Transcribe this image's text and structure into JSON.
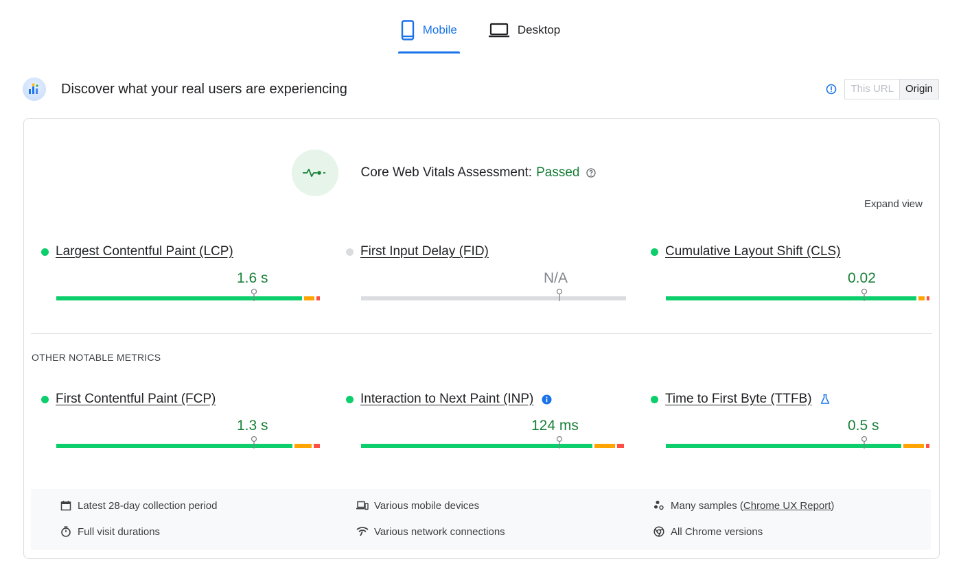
{
  "tabs": [
    {
      "label": "Mobile",
      "icon": "smartphone-icon",
      "active": true
    },
    {
      "label": "Desktop",
      "icon": "laptop-icon",
      "active": false
    }
  ],
  "header": {
    "title": "Discover what your real users are experiencing",
    "toggle": {
      "this_url": "This URL",
      "origin": "Origin",
      "selected": "Origin"
    }
  },
  "assessment": {
    "label": "Core Web Vitals Assessment:",
    "status": "Passed",
    "expand_view": "Expand view"
  },
  "core_metrics": [
    {
      "label": "Largest Contentful Paint (LCP)",
      "value": "1.6 s",
      "status": "good"
    },
    {
      "label": "First Input Delay (FID)",
      "value": "N/A",
      "status": "na"
    },
    {
      "label": "Cumulative Layout Shift (CLS)",
      "value": "0.02",
      "status": "good"
    }
  ],
  "other_section_title": "OTHER NOTABLE METRICS",
  "other_metrics": [
    {
      "label": "First Contentful Paint (FCP)",
      "value": "1.3 s",
      "status": "good"
    },
    {
      "label": "Interaction to Next Paint (INP)",
      "value": "124 ms",
      "status": "good",
      "extra_icon": "info-filled-icon"
    },
    {
      "label": "Time to First Byte (TTFB)",
      "value": "0.5 s",
      "status": "good",
      "extra_icon": "flask-icon"
    }
  ],
  "footer": {
    "collection_period": "Latest 28-day collection period",
    "devices": "Various mobile devices",
    "samples_prefix": "Many samples (",
    "samples_link": "Chrome UX Report",
    "samples_suffix": ")",
    "durations": "Full visit durations",
    "network": "Various network connections",
    "versions": "All Chrome versions"
  },
  "colors": {
    "accent": "#1a73e8",
    "good": "#0cce6b",
    "needs_improvement": "#ffa400",
    "poor": "#ff4e42",
    "pass_text": "#188038"
  }
}
